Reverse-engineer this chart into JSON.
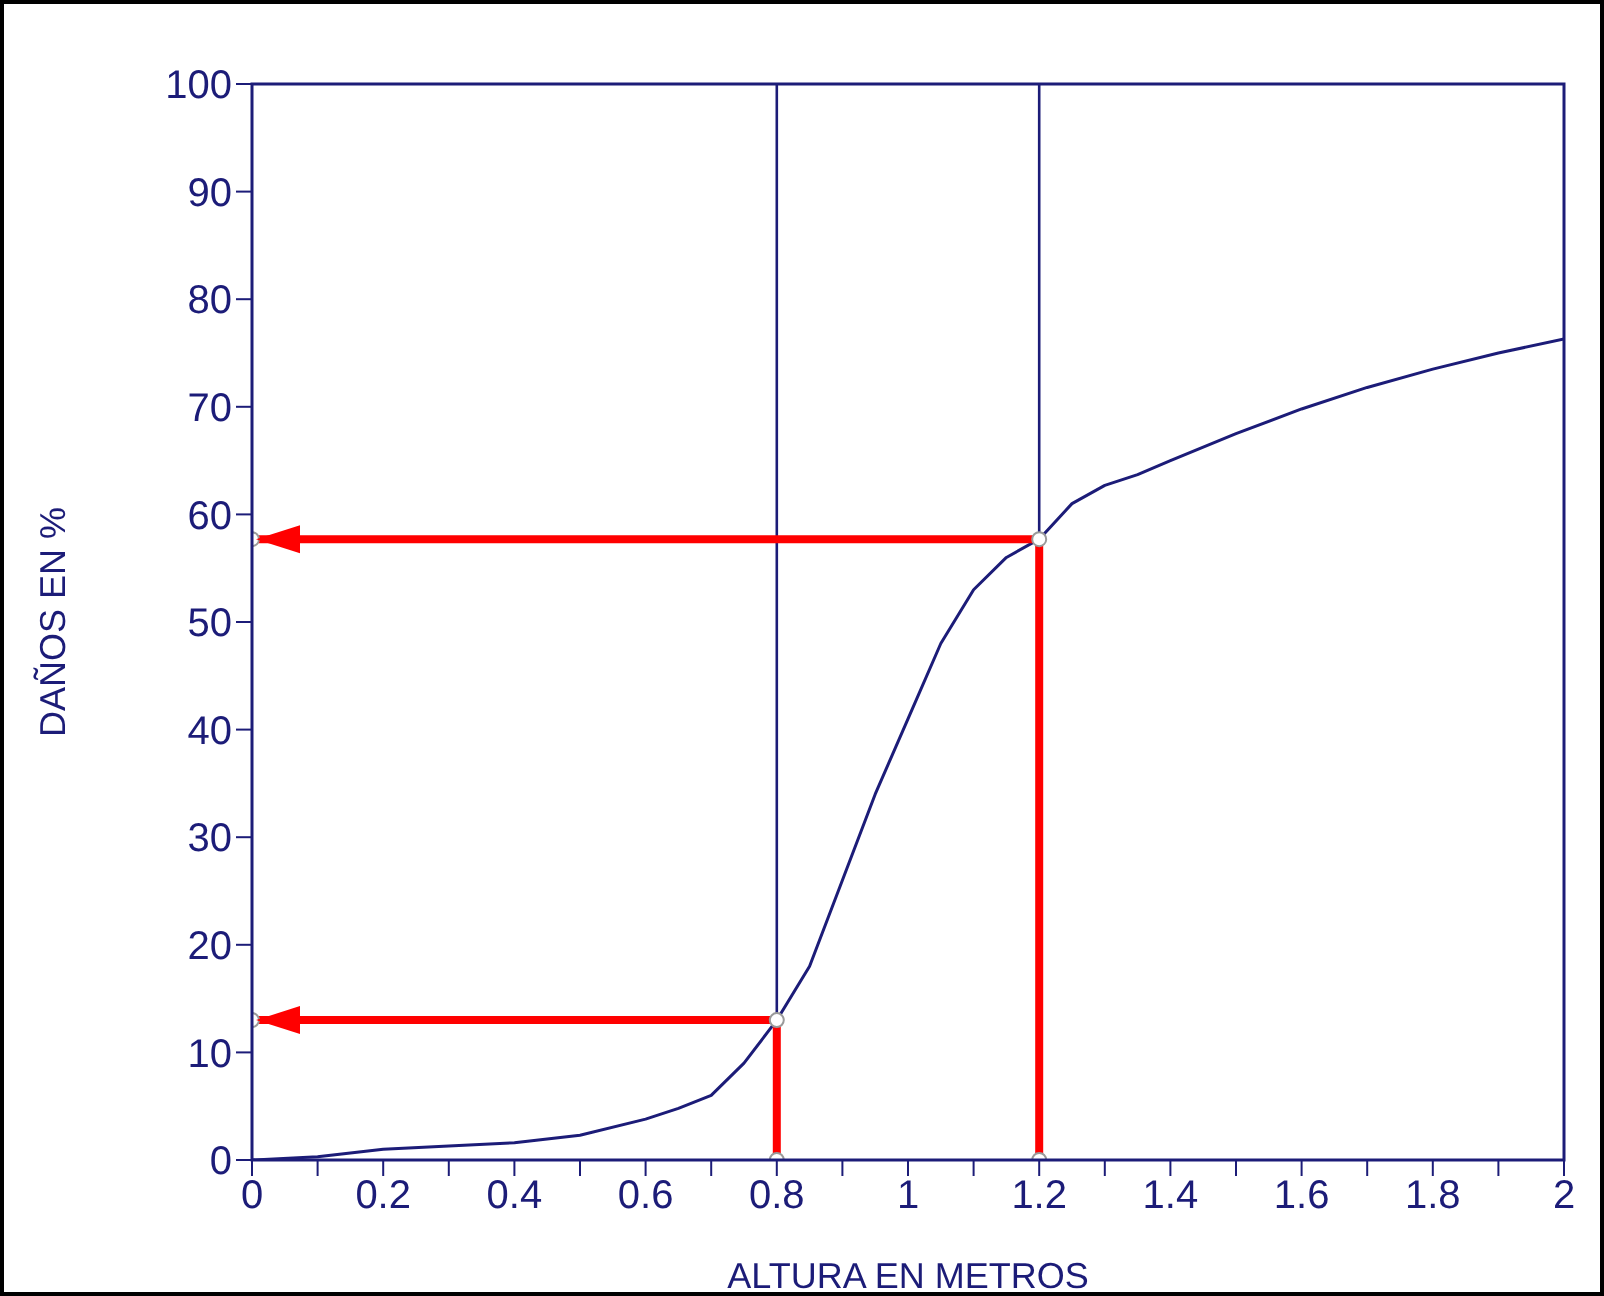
{
  "chart_data": {
    "type": "line",
    "xlabel": "ALTURA EN METROS",
    "ylabel": "DAÑOS EN %",
    "xlim": [
      0,
      2
    ],
    "ylim": [
      0,
      100
    ],
    "xticks": [
      0,
      {
        "value": 0.1,
        "label": null
      },
      0.2,
      {
        "value": 0.3,
        "label": null
      },
      0.4,
      {
        "value": 0.5,
        "label": null
      },
      0.6,
      {
        "value": 0.7,
        "label": null
      },
      0.8,
      {
        "value": 0.9,
        "label": null
      },
      1,
      {
        "value": 1.1,
        "label": null
      },
      1.2,
      {
        "value": 1.3,
        "label": null
      },
      1.4,
      {
        "value": 1.5,
        "label": null
      },
      1.6,
      {
        "value": 1.7,
        "label": null
      },
      1.8,
      {
        "value": 1.9,
        "label": null
      },
      2
    ],
    "yticks": [
      0,
      10,
      20,
      30,
      40,
      50,
      60,
      70,
      80,
      90,
      100
    ],
    "line_style": "solid",
    "series": [
      {
        "color": "#1c1c78",
        "marker": "none",
        "x": [
          0,
          0.1,
          0.2,
          0.3,
          0.4,
          0.5,
          0.6,
          0.65,
          0.7,
          0.75,
          0.8,
          0.85,
          0.9,
          0.95,
          1,
          1.05,
          1.1,
          1.15,
          1.2,
          1.25,
          1.3,
          1.35,
          1.4,
          1.5,
          1.6,
          1.7,
          1.8,
          1.9,
          2
        ],
        "values": [
          0,
          0.3,
          1,
          1.3,
          1.6,
          2.3,
          3.8,
          4.8,
          6,
          9,
          13,
          18,
          26,
          34,
          41,
          48,
          53,
          56,
          57.7,
          61,
          62.7,
          63.7,
          65,
          67.5,
          69.8,
          71.8,
          73.5,
          75,
          76.3
        ]
      },
      {
        "color": "#ff0000",
        "marker": "circle",
        "x": [
          0.8,
          0.8,
          0
        ],
        "values": [
          0,
          13,
          13
        ]
      },
      {
        "color": "#ff0000",
        "marker": "circle",
        "x": [
          1.2,
          1.2,
          0
        ],
        "values": [
          0,
          57.7,
          57.7
        ]
      }
    ],
    "ref_lines": [
      {
        "axis": "x",
        "value": 0.8,
        "color": "#1c1c78"
      },
      {
        "axis": "x",
        "value": 1.2,
        "color": "#1c1c78"
      }
    ]
  }
}
